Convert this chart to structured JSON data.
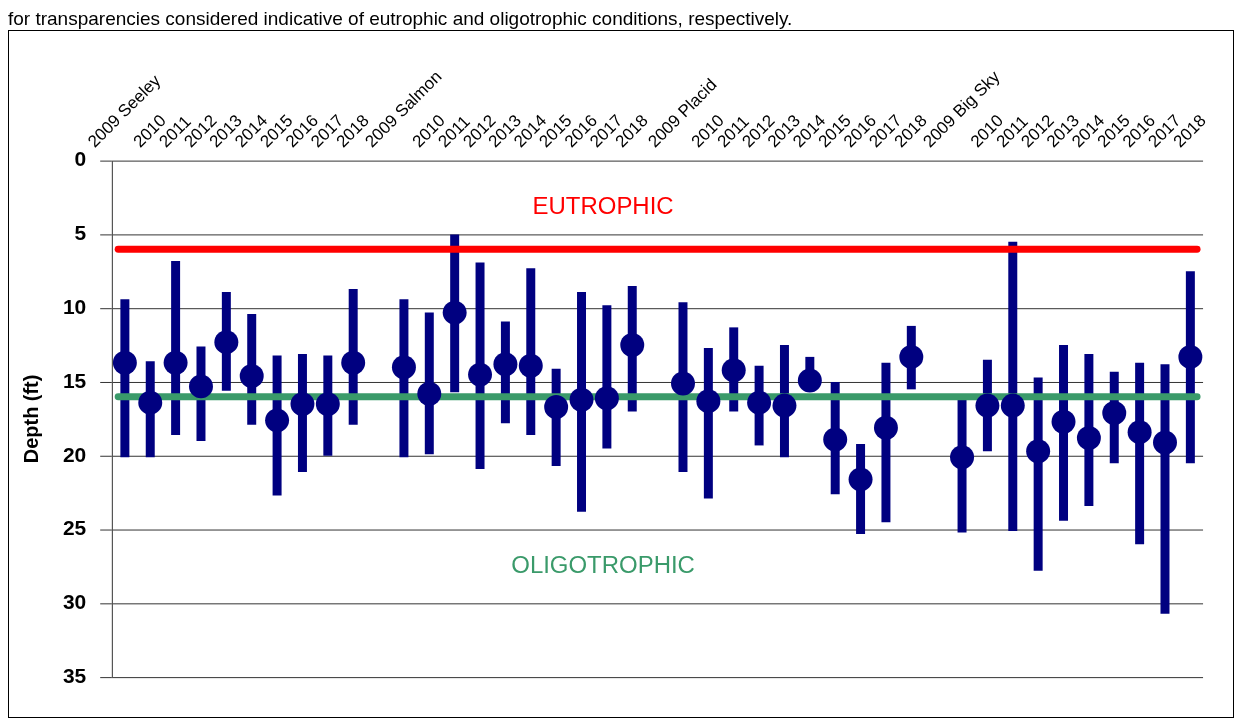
{
  "chart_data": {
    "type": "scatter",
    "ylabel": "Depth (ft)",
    "annotations": [
      "for transparencies considered indicative of eutrophic and oligotrophic conditions, respectively.",
      "EUTROPHIC",
      "OLIGOTROPHIC"
    ],
    "categories": [
      "2009 Seeley",
      "2010",
      "2011",
      "2012",
      "2013",
      "2014",
      "2015",
      "2016",
      "2017",
      "2018",
      null,
      "2009 Salmon",
      "2010",
      "2011",
      "2012",
      "2013",
      "2014",
      "2015",
      "2016",
      "2017",
      "2018",
      null,
      "2009 Placid",
      "2010",
      "2011",
      "2012",
      "2013",
      "2014",
      "2015",
      "2016",
      "2017",
      "2018",
      null,
      "2009 Big Sky",
      "2010",
      "2011",
      "2012",
      "2013",
      "2014",
      "2015",
      "2016",
      "2017",
      "2018"
    ],
    "series": [
      {
        "color": "#000080",
        "values": [
          13.7,
          16.4,
          13.7,
          15.3,
          12.3,
          14.6,
          17.6,
          16.5,
          16.5,
          13.7,
          null,
          14.0,
          15.8,
          10.3,
          14.5,
          13.8,
          13.9,
          16.7,
          16.2,
          16.1,
          12.5,
          null,
          15.1,
          16.3,
          14.2,
          16.4,
          16.6,
          14.9,
          18.9,
          21.6,
          18.1,
          13.3,
          null,
          20.1,
          16.6,
          16.6,
          19.7,
          17.7,
          18.8,
          17.1,
          18.4,
          19.1,
          13.3
        ],
        "errors": [
          [
            9.4,
            20.1
          ],
          [
            13.6,
            20.1
          ],
          [
            6.8,
            18.6
          ],
          [
            12.6,
            19.0
          ],
          [
            8.9,
            15.6
          ],
          [
            10.4,
            17.9
          ],
          [
            13.2,
            22.7
          ],
          [
            13.1,
            21.1
          ],
          [
            13.2,
            20.0
          ],
          [
            8.7,
            17.9
          ],
          null,
          [
            9.4,
            20.1
          ],
          [
            10.3,
            19.9
          ],
          [
            5.0,
            15.7
          ],
          [
            6.9,
            20.9
          ],
          [
            10.9,
            17.8
          ],
          [
            7.3,
            18.6
          ],
          [
            14.1,
            20.7
          ],
          [
            8.9,
            23.8
          ],
          [
            9.8,
            19.5
          ],
          [
            8.5,
            17.0
          ],
          null,
          [
            9.6,
            21.1
          ],
          [
            12.7,
            22.9
          ],
          [
            11.3,
            17.0
          ],
          [
            13.9,
            19.3
          ],
          [
            12.5,
            20.1
          ],
          [
            13.3,
            15.5
          ],
          [
            15.0,
            22.6
          ],
          [
            19.2,
            25.3
          ],
          [
            13.7,
            24.5
          ],
          [
            11.2,
            15.5
          ],
          null,
          [
            16.2,
            25.2
          ],
          [
            13.5,
            19.7
          ],
          [
            5.5,
            25.1
          ],
          [
            14.7,
            27.8
          ],
          [
            12.5,
            24.4
          ],
          [
            13.1,
            23.4
          ],
          [
            14.3,
            20.5
          ],
          [
            13.7,
            26.0
          ],
          [
            13.8,
            30.7
          ],
          [
            7.5,
            20.5
          ]
        ]
      }
    ],
    "ylim": [
      35,
      0
    ],
    "yticks": [
      0,
      5,
      10,
      15,
      20,
      25,
      30,
      35
    ],
    "grid": "y",
    "marker": "circle",
    "legend": false,
    "ref_lines": [
      {
        "axis": "y",
        "value": 6,
        "color": "#ff0000"
      },
      {
        "axis": "y",
        "value": 16,
        "color": "#3a9a6a"
      }
    ]
  }
}
